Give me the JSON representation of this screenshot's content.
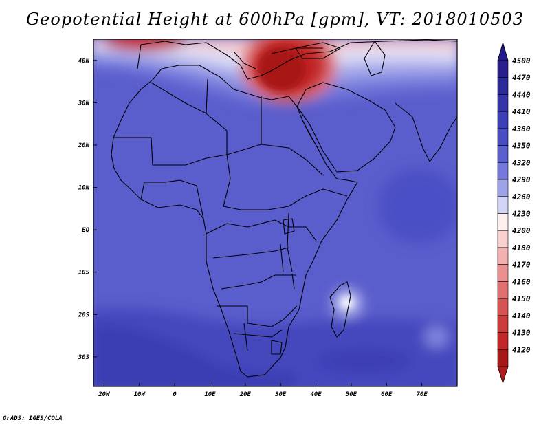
{
  "title": "Geopotential Height at 600hPa [gpm], VT: 2018010503",
  "credit": "GrADS: IGES/COLA",
  "map": {
    "lon_range": [
      -23,
      80
    ],
    "lat_range": [
      -37,
      45
    ],
    "lon_ticks": [
      {
        "value": -20,
        "label": "20W"
      },
      {
        "value": -10,
        "label": "10W"
      },
      {
        "value": 0,
        "label": "0"
      },
      {
        "value": 10,
        "label": "10E"
      },
      {
        "value": 20,
        "label": "20E"
      },
      {
        "value": 30,
        "label": "30E"
      },
      {
        "value": 40,
        "label": "40E"
      },
      {
        "value": 50,
        "label": "50E"
      },
      {
        "value": 60,
        "label": "60E"
      },
      {
        "value": 70,
        "label": "70E"
      }
    ],
    "lat_ticks": [
      {
        "value": 40,
        "label": "40N"
      },
      {
        "value": 30,
        "label": "30N"
      },
      {
        "value": 20,
        "label": "20N"
      },
      {
        "value": 10,
        "label": "10N"
      },
      {
        "value": 0,
        "label": "EQ"
      },
      {
        "value": -10,
        "label": "10S"
      },
      {
        "value": -20,
        "label": "20S"
      },
      {
        "value": -30,
        "label": "30S"
      }
    ]
  },
  "colorbar": {
    "levels": [
      {
        "label": "4500",
        "color": "#2a1d8c"
      },
      {
        "label": "4470",
        "color": "#2c2a99"
      },
      {
        "label": "4440",
        "color": "#3433a8"
      },
      {
        "label": "4410",
        "color": "#3d3fb8"
      },
      {
        "label": "4380",
        "color": "#4a4cc4"
      },
      {
        "label": "4350",
        "color": "#5c5fcf"
      },
      {
        "label": "4320",
        "color": "#7478da"
      },
      {
        "label": "4290",
        "color": "#9ea2e6"
      },
      {
        "label": "4260",
        "color": "#d2d4f5"
      },
      {
        "label": "4230",
        "color": "#fff0f0"
      },
      {
        "label": "4200",
        "color": "#f9d0d0"
      },
      {
        "label": "4180",
        "color": "#f2b0b0"
      },
      {
        "label": "4170",
        "color": "#ea9090"
      },
      {
        "label": "4160",
        "color": "#e07070"
      },
      {
        "label": "4150",
        "color": "#d85252"
      },
      {
        "label": "4140",
        "color": "#cf3a3a"
      },
      {
        "label": "4130",
        "color": "#c22828"
      },
      {
        "label": "4120",
        "color": "#a81818"
      }
    ],
    "top_cap_color": "#24198a",
    "bottom_cap_color": "#b01c1c"
  }
}
